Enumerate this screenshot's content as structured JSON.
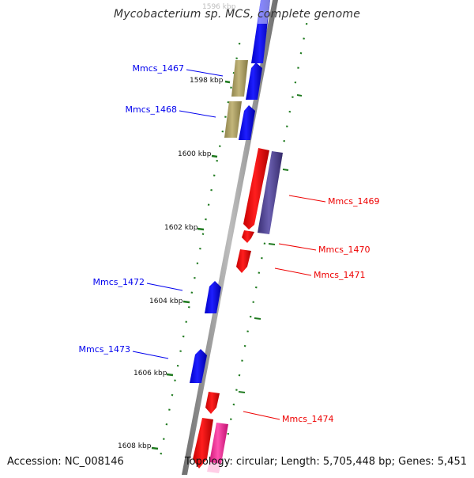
{
  "header": {
    "title": "Mycobacterium sp. MCS, complete genome"
  },
  "footer": {
    "accession": "Accession: NC_008146",
    "topology": "Topology: circular; Length: 5,705,448 bp; Genes: 5,451"
  },
  "axis": {
    "tick_labels": [
      "1596 kbp",
      "1598 kbp",
      "1600 kbp",
      "1602 kbp",
      "1604 kbp",
      "1606 kbp",
      "1608 kbp"
    ]
  },
  "genes": [
    {
      "name": "Mmcs_1467",
      "strand": "forward",
      "color": "#0000ee"
    },
    {
      "name": "Mmcs_1468",
      "strand": "forward",
      "color": "#0000ee"
    },
    {
      "name": "Mmcs_1469",
      "strand": "reverse",
      "color": "#ee0000"
    },
    {
      "name": "Mmcs_1470",
      "strand": "reverse",
      "color": "#ee0000"
    },
    {
      "name": "Mmcs_1471",
      "strand": "reverse",
      "color": "#ee0000"
    },
    {
      "name": "Mmcs_1472",
      "strand": "forward",
      "color": "#0000ee"
    },
    {
      "name": "Mmcs_1473",
      "strand": "forward",
      "color": "#0000ee"
    },
    {
      "name": "Mmcs_1474",
      "strand": "reverse",
      "color": "#ee0000"
    }
  ],
  "colors": {
    "forward_gene": "#0000ee",
    "reverse_gene": "#ee0000",
    "forward_feature": "#b0a468",
    "reverse_feature": "#4a3f8a",
    "pink_feature": "#ff2a9a",
    "tick": "#1f7a1f",
    "backbone": "#8a8a8a"
  }
}
